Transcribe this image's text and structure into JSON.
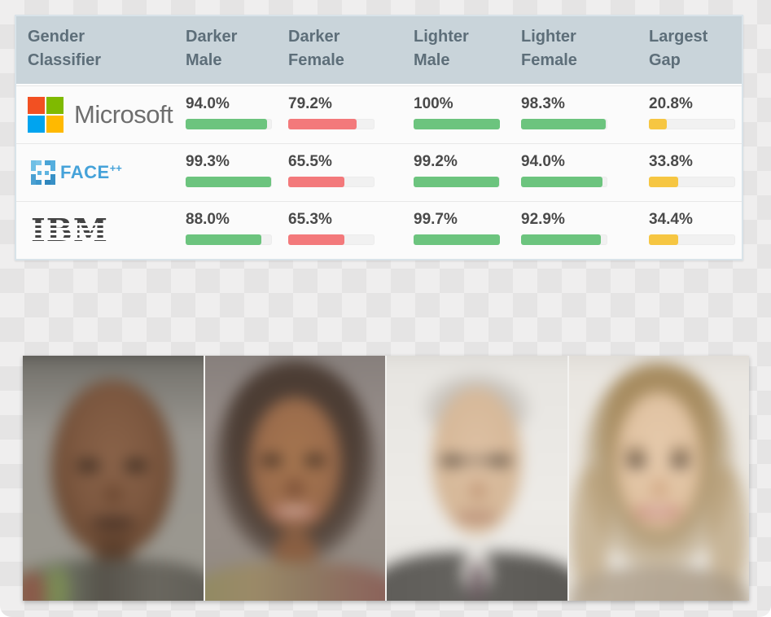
{
  "colors": {
    "green": "#6cc47e",
    "red": "#f3797b",
    "yellow": "#f6c642",
    "bar_track": "#f1f1f1",
    "header_bg": "#c9d4da",
    "header_text": "#5d6e79",
    "value_text": "#4a4a4a",
    "table_border": "#d9e3e9",
    "row_bg": "#fbfbfb",
    "ms_red": "#f25022",
    "ms_green": "#7fba00",
    "ms_blue": "#00a4ef",
    "ms_yellow": "#ffb900",
    "ms_text_gray": "#6e6e6e",
    "facepp_blue": "#45a2d9",
    "ibm_gray": "#434343"
  },
  "table": {
    "headers": [
      {
        "line1": "Gender",
        "line2": "Classifier"
      },
      {
        "line1": "Darker",
        "line2": "Male"
      },
      {
        "line1": "Darker",
        "line2": "Female"
      },
      {
        "line1": "Lighter",
        "line2": "Male"
      },
      {
        "line1": "Lighter",
        "line2": "Female"
      },
      {
        "line1": "Largest",
        "line2": "Gap"
      }
    ],
    "logos": {
      "microsoft_text": "Microsoft",
      "facepp_text": "FACE",
      "facepp_superscript": "++",
      "ibm_text": "IBM"
    },
    "rows": [
      {
        "classifier": "Microsoft",
        "cells": [
          {
            "label": "94.0%",
            "value": 94.0,
            "color": "green"
          },
          {
            "label": "79.2%",
            "value": 79.2,
            "color": "red"
          },
          {
            "label": "100%",
            "value": 100,
            "color": "green"
          },
          {
            "label": "98.3%",
            "value": 98.3,
            "color": "green"
          },
          {
            "label": "20.8%",
            "value": 20.8,
            "color": "yellow"
          }
        ]
      },
      {
        "classifier": "FACE++",
        "cells": [
          {
            "label": "99.3%",
            "value": 99.3,
            "color": "green"
          },
          {
            "label": "65.5%",
            "value": 65.5,
            "color": "red"
          },
          {
            "label": "99.2%",
            "value": 99.2,
            "color": "green"
          },
          {
            "label": "94.0%",
            "value": 94.0,
            "color": "green"
          },
          {
            "label": "33.8%",
            "value": 33.8,
            "color": "yellow"
          }
        ]
      },
      {
        "classifier": "IBM",
        "cells": [
          {
            "label": "88.0%",
            "value": 88.0,
            "color": "green"
          },
          {
            "label": "65.3%",
            "value": 65.3,
            "color": "red"
          },
          {
            "label": "99.7%",
            "value": 99.7,
            "color": "green"
          },
          {
            "label": "92.9%",
            "value": 92.9,
            "color": "green"
          },
          {
            "label": "34.4%",
            "value": 34.4,
            "color": "yellow"
          }
        ]
      }
    ]
  },
  "chart_data": {
    "type": "table",
    "columns": [
      "Gender Classifier",
      "Darker Male",
      "Darker Female",
      "Lighter Male",
      "Lighter Female",
      "Largest Gap"
    ],
    "units": "%",
    "rows": [
      {
        "classifier": "Microsoft",
        "values": [
          94.0,
          79.2,
          100,
          98.3,
          20.8
        ]
      },
      {
        "classifier": "FACE++",
        "values": [
          99.3,
          65.5,
          99.2,
          94.0,
          33.8
        ]
      },
      {
        "classifier": "IBM",
        "values": [
          88.0,
          65.3,
          99.7,
          92.9,
          34.4
        ]
      }
    ],
    "bar_colors": {
      "accuracy_high": "#6cc47e",
      "accuracy_low": "#f3797b",
      "gap": "#f6c642"
    },
    "layout": "each cell shows bold percentage label above a horizontal progress bar filled to that percentage"
  }
}
